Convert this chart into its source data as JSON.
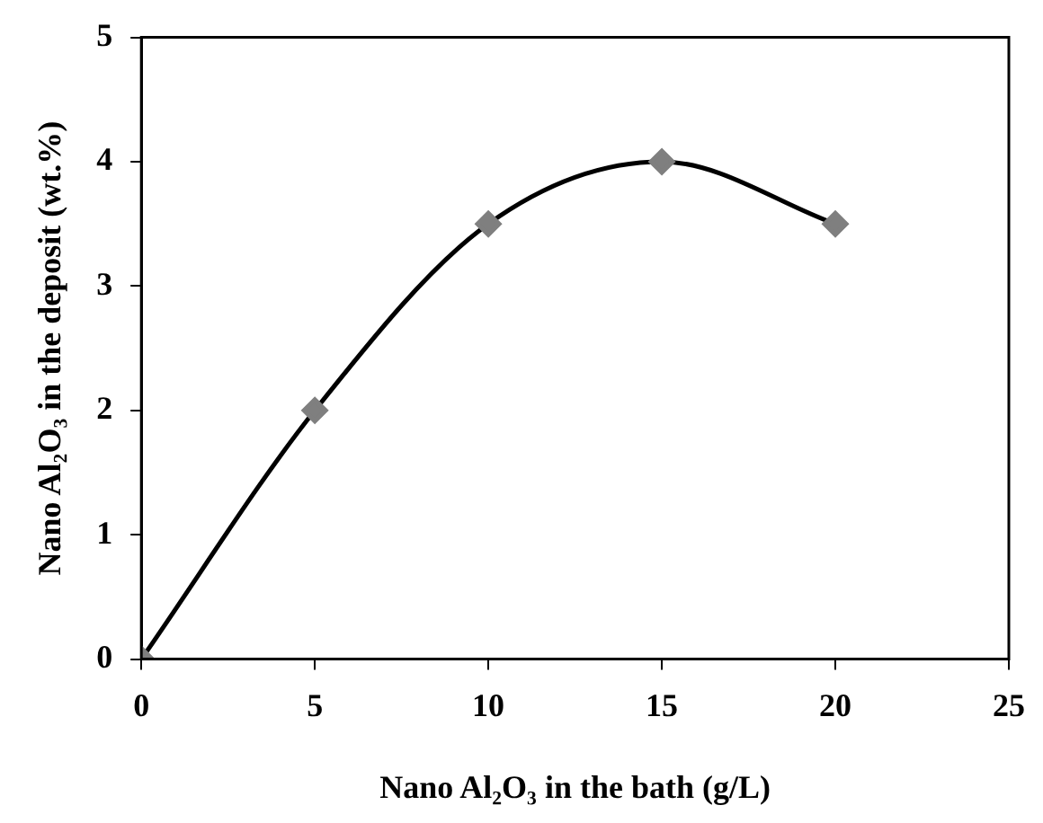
{
  "chart_data": {
    "type": "line",
    "xlabel": "Nano Al₂O₃ in the bath (g/L)",
    "ylabel": "Nano Al₂O₃ in the deposit (wt.%)",
    "x": [
      0,
      5,
      10,
      15,
      20
    ],
    "series": [
      {
        "color": "#000000",
        "values": [
          0,
          2,
          3.5,
          4,
          3.5
        ]
      }
    ],
    "xlim": [
      0,
      25
    ],
    "xticks": [
      0,
      5,
      10,
      15,
      20,
      25
    ],
    "ylim": [
      0,
      5
    ],
    "yticks": [
      0,
      1,
      2,
      3,
      4,
      5
    ],
    "grid": false,
    "legend": false,
    "marker": "diamond",
    "line_style": "solid"
  }
}
